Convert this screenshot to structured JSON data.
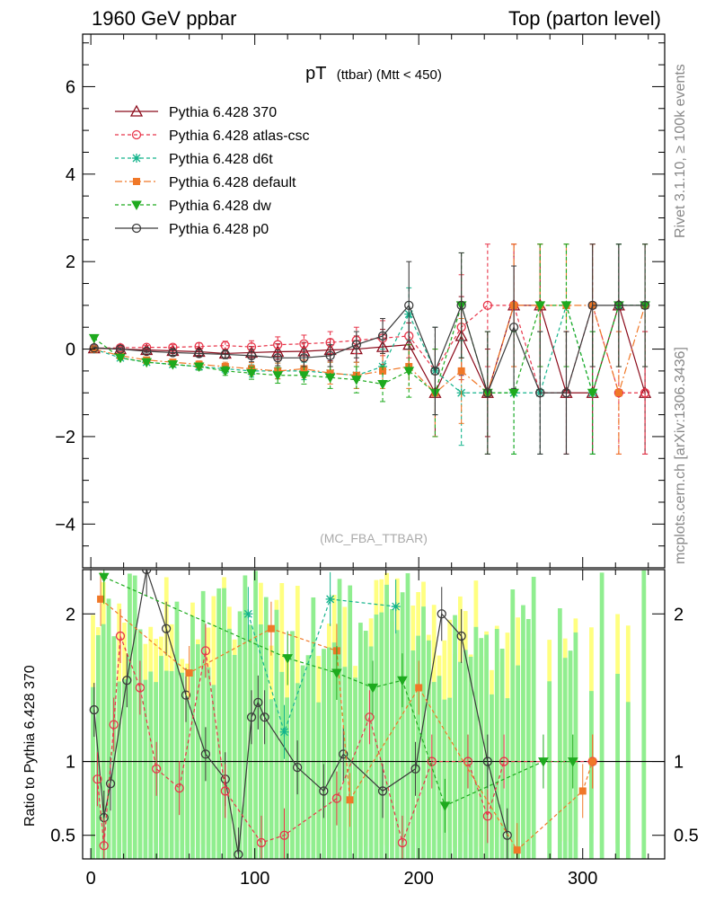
{
  "header": {
    "left": "1960 GeV ppbar",
    "right": "Top (parton level)"
  },
  "side_labels": {
    "rivet": "Rivet 3.1.10, ≥ 100k events",
    "mcplots": "mcplots.cern.ch [arXiv:1306.3436]"
  },
  "chart_data": [
    {
      "type": "line",
      "title_main": "pT",
      "title_sub": "(ttbar) (Mtt < 450)",
      "watermark": "(MC_FBA_TTBAR)",
      "xlim": [
        -5,
        350
      ],
      "ylim": [
        -5,
        7.2
      ],
      "x_ticks": [
        0,
        100,
        200,
        300
      ],
      "y_ticks": [
        -4,
        -2,
        0,
        2,
        4,
        6
      ],
      "y_tick_labels": [
        "−4",
        "−2",
        "0",
        "2",
        "4",
        "6"
      ],
      "legend_position": "top-left",
      "series": [
        {
          "name": "Pythia 6.428 370",
          "color": "#8b0a1a",
          "dash": "",
          "marker": "triangle-open",
          "x": [
            2,
            18,
            34,
            50,
            66,
            82,
            98,
            114,
            130,
            146,
            162,
            178,
            194,
            210,
            226,
            242,
            258,
            274,
            290,
            306,
            322,
            338
          ],
          "y": [
            0.02,
            0.0,
            -0.02,
            -0.04,
            -0.06,
            -0.1,
            -0.08,
            -0.06,
            -0.05,
            -0.02,
            0.0,
            0.05,
            0.1,
            -1.0,
            0.3,
            -1.0,
            1.0,
            1.0,
            -1.0,
            -1.0,
            1.0,
            -1.0
          ],
          "err": [
            0.02,
            0.03,
            0.04,
            0.06,
            0.08,
            0.1,
            0.14,
            0.18,
            0.2,
            0.25,
            0.3,
            0.4,
            0.5,
            1.0,
            0.9,
            1.0,
            1.4,
            1.4,
            1.4,
            1.4,
            1.4,
            1.4
          ]
        },
        {
          "name": "Pythia 6.428 atlas-csc",
          "color": "#e8354a",
          "dash": "4,3",
          "marker": "circle-open",
          "x": [
            2,
            18,
            34,
            50,
            66,
            82,
            98,
            114,
            130,
            146,
            162,
            178,
            194,
            210,
            226,
            242,
            258,
            274,
            290,
            306,
            322,
            338
          ],
          "y": [
            0.02,
            0.03,
            0.04,
            0.04,
            0.06,
            0.08,
            0.05,
            0.1,
            0.12,
            0.15,
            0.2,
            0.25,
            0.3,
            -0.5,
            0.5,
            1.0,
            1.0,
            -1.0,
            -1.0,
            1.0,
            -1.0,
            -1.0
          ],
          "err": [
            0.02,
            0.03,
            0.04,
            0.06,
            0.08,
            0.1,
            0.14,
            0.18,
            0.2,
            0.25,
            0.3,
            0.4,
            0.5,
            1.0,
            1.2,
            1.4,
            1.4,
            1.4,
            1.4,
            1.4,
            1.4,
            1.4
          ]
        },
        {
          "name": "Pythia 6.428 d6t",
          "color": "#14b48c",
          "dash": "4,3",
          "marker": "star",
          "x": [
            2,
            18,
            34,
            50,
            66,
            82,
            98,
            114,
            130,
            146,
            162,
            178,
            194,
            210,
            226,
            242,
            258,
            274,
            290,
            306,
            322,
            338
          ],
          "y": [
            0.0,
            -0.2,
            -0.3,
            -0.35,
            -0.4,
            -0.45,
            -0.5,
            -0.5,
            -0.5,
            -0.55,
            -0.6,
            -0.4,
            0.8,
            -0.5,
            -1.0,
            -1.0,
            -1.0,
            -1.0,
            1.0,
            -1.0,
            1.0,
            1.0
          ],
          "err": [
            0.02,
            0.03,
            0.04,
            0.06,
            0.08,
            0.1,
            0.14,
            0.18,
            0.2,
            0.25,
            0.3,
            0.4,
            0.6,
            1.0,
            1.2,
            1.4,
            1.4,
            1.4,
            1.4,
            1.4,
            1.4,
            1.4
          ]
        },
        {
          "name": "Pythia 6.428 default",
          "color": "#f07828",
          "dash": "8,3,2,3",
          "marker": "square",
          "x": [
            2,
            18,
            34,
            50,
            66,
            82,
            98,
            114,
            130,
            146,
            162,
            178,
            194,
            210,
            226,
            242,
            258,
            274,
            290,
            306,
            322,
            338
          ],
          "y": [
            0.0,
            -0.15,
            -0.25,
            -0.3,
            -0.35,
            -0.4,
            -0.45,
            -0.5,
            -0.45,
            -0.55,
            -0.6,
            -0.5,
            -0.4,
            -1.0,
            -0.5,
            -1.0,
            1.0,
            1.0,
            1.0,
            1.0,
            -1.0,
            1.0
          ],
          "err": [
            0.02,
            0.03,
            0.04,
            0.06,
            0.08,
            0.1,
            0.14,
            0.18,
            0.2,
            0.25,
            0.3,
            0.4,
            0.5,
            1.0,
            1.2,
            1.4,
            1.4,
            1.4,
            1.4,
            1.4,
            1.4,
            1.4
          ]
        },
        {
          "name": "Pythia 6.428 dw",
          "color": "#1eaa1e",
          "dash": "4,3",
          "marker": "triangle-down",
          "x": [
            2,
            18,
            34,
            50,
            66,
            82,
            98,
            114,
            130,
            146,
            162,
            178,
            194,
            210,
            226,
            242,
            258,
            274,
            290,
            306,
            322,
            338
          ],
          "y": [
            0.25,
            -0.2,
            -0.3,
            -0.35,
            -0.4,
            -0.5,
            -0.55,
            -0.6,
            -0.6,
            -0.65,
            -0.7,
            -0.8,
            -0.5,
            -1.0,
            1.0,
            -1.0,
            -1.0,
            1.0,
            1.0,
            -1.0,
            1.0,
            1.0
          ],
          "err": [
            0.02,
            0.03,
            0.04,
            0.06,
            0.08,
            0.1,
            0.14,
            0.18,
            0.2,
            0.25,
            0.3,
            0.4,
            0.6,
            1.0,
            1.2,
            1.4,
            1.4,
            1.4,
            1.4,
            1.4,
            1.4,
            1.4
          ]
        },
        {
          "name": "Pythia 6.428 p0",
          "color": "#3a3a3a",
          "dash": "",
          "marker": "circle-open",
          "x": [
            2,
            18,
            34,
            50,
            66,
            82,
            98,
            114,
            130,
            146,
            162,
            178,
            194,
            210,
            226,
            242,
            258,
            274,
            290,
            306,
            322,
            338
          ],
          "y": [
            0.03,
            0.0,
            -0.05,
            -0.08,
            -0.1,
            -0.12,
            -0.15,
            -0.2,
            -0.2,
            -0.15,
            0.1,
            0.3,
            1.0,
            -0.5,
            1.0,
            -1.0,
            0.5,
            -1.0,
            -1.0,
            1.0,
            1.0,
            1.0
          ],
          "err": [
            0.02,
            0.03,
            0.04,
            0.06,
            0.08,
            0.1,
            0.14,
            0.18,
            0.2,
            0.25,
            0.3,
            0.4,
            1.0,
            1.0,
            1.2,
            1.4,
            1.4,
            1.4,
            1.4,
            1.4,
            1.4,
            1.4
          ]
        }
      ]
    },
    {
      "type": "line",
      "ylabel": "Ratio to Pythia 6.428 370",
      "xlim": [
        -5,
        350
      ],
      "ylim": [
        0.34,
        2.3
      ],
      "x_ticks": [
        0,
        100,
        200,
        300
      ],
      "y_ticks": [
        0.5,
        1,
        2
      ],
      "y_tick_labels": [
        "0.5",
        "1",
        "2"
      ],
      "reference": 1,
      "bands": {
        "yellow": "#ffff80",
        "green": "#90ee90"
      },
      "series": [
        {
          "name": "Pythia 6.428 p0",
          "color": "#3a3a3a",
          "x": [
            2,
            8,
            12,
            22,
            34,
            46,
            58,
            70,
            82,
            90,
            98,
            102,
            106,
            126,
            142,
            154,
            178,
            198,
            214,
            226,
            242,
            254
          ],
          "y": [
            1.35,
            0.62,
            0.85,
            1.55,
            2.3,
            1.9,
            1.45,
            1.05,
            0.88,
            0.37,
            1.3,
            1.4,
            1.3,
            0.96,
            0.8,
            1.05,
            0.8,
            0.95,
            2.0,
            1.85,
            1.0,
            0.5
          ]
        },
        {
          "name": "Pythia 6.428 atlas-csc",
          "color": "#e8354a",
          "x": [
            4,
            8,
            14,
            18,
            30,
            40,
            54,
            70,
            82,
            104,
            118,
            150,
            170,
            190,
            208,
            230,
            242,
            252,
            306
          ],
          "y": [
            0.88,
            0.43,
            1.25,
            1.85,
            1.5,
            0.95,
            0.82,
            1.75,
            0.8,
            0.45,
            0.5,
            0.75,
            1.3,
            0.45,
            1.0,
            1.0,
            0.63,
            1.0,
            1.0
          ]
        },
        {
          "name": "Pythia 6.428 default",
          "color": "#f07828",
          "x": [
            6,
            60,
            110,
            150,
            158,
            200,
            260,
            300,
            306
          ],
          "y": [
            2.1,
            1.6,
            1.9,
            1.75,
            0.74,
            1.5,
            0.4,
            0.8,
            1.0
          ]
        },
        {
          "name": "Pythia 6.428 dw",
          "color": "#1eaa1e",
          "x": [
            8,
            120,
            150,
            172,
            190,
            216,
            276,
            294
          ],
          "y": [
            2.25,
            1.7,
            1.6,
            1.5,
            1.55,
            0.7,
            1.0,
            1.0
          ]
        },
        {
          "name": "Pythia 6.428 d6t",
          "color": "#14b48c",
          "x": [
            96,
            118,
            146,
            186
          ],
          "y": [
            2.0,
            1.2,
            2.1,
            2.05
          ]
        }
      ]
    }
  ]
}
